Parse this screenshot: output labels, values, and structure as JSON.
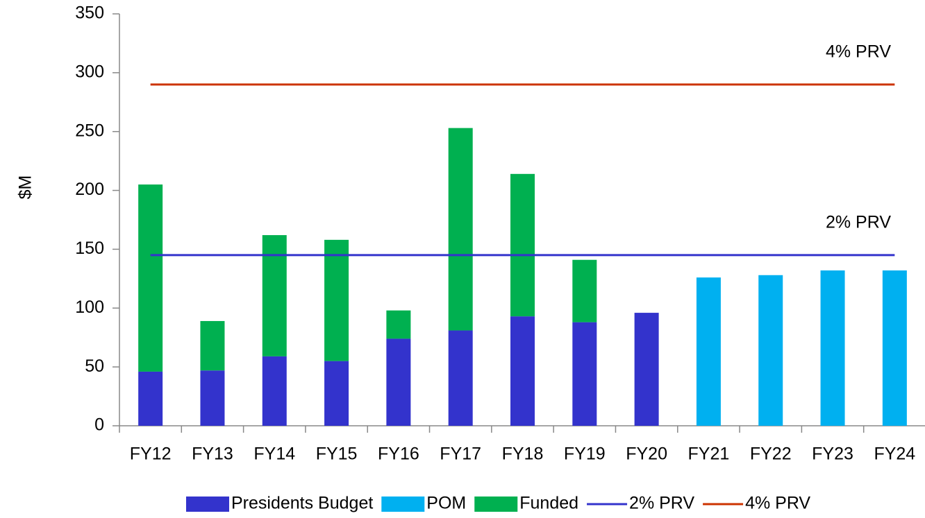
{
  "chart_data": {
    "type": "bar",
    "stacked": true,
    "y_label": "$M",
    "categories": [
      "FY12",
      "FY13",
      "FY14",
      "FY15",
      "FY16",
      "FY17",
      "FY18",
      "FY19",
      "FY20",
      "FY21",
      "FY22",
      "FY23",
      "FY24"
    ],
    "series": [
      {
        "name": "Presidents Budget",
        "color": "#3333cc",
        "values": [
          46,
          47,
          59,
          55,
          74,
          81,
          93,
          88,
          96,
          null,
          null,
          null,
          null
        ]
      },
      {
        "name": "POM",
        "color": "#00b0f0",
        "values": [
          null,
          null,
          null,
          null,
          null,
          null,
          null,
          null,
          null,
          126,
          128,
          132,
          132
        ]
      },
      {
        "name": "Funded",
        "color": "#00b050",
        "values": [
          159,
          42,
          103,
          103,
          24,
          172,
          121,
          53,
          null,
          null,
          null,
          null,
          null
        ]
      },
      {
        "name": "2% PRV",
        "type": "line",
        "color": "#3333cc",
        "values": [
          145,
          145,
          145,
          145,
          145,
          145,
          145,
          145,
          145,
          145,
          145,
          145,
          145
        ]
      },
      {
        "name": "4% PRV",
        "type": "line",
        "color": "#cc3300",
        "values": [
          290,
          290,
          290,
          290,
          290,
          290,
          290,
          290,
          290,
          290,
          290,
          290,
          290
        ]
      }
    ],
    "ylim": [
      0,
      350
    ],
    "yticks": [
      0,
      50,
      100,
      150,
      200,
      250,
      300,
      350
    ],
    "grid": false,
    "legend": "bottom"
  }
}
